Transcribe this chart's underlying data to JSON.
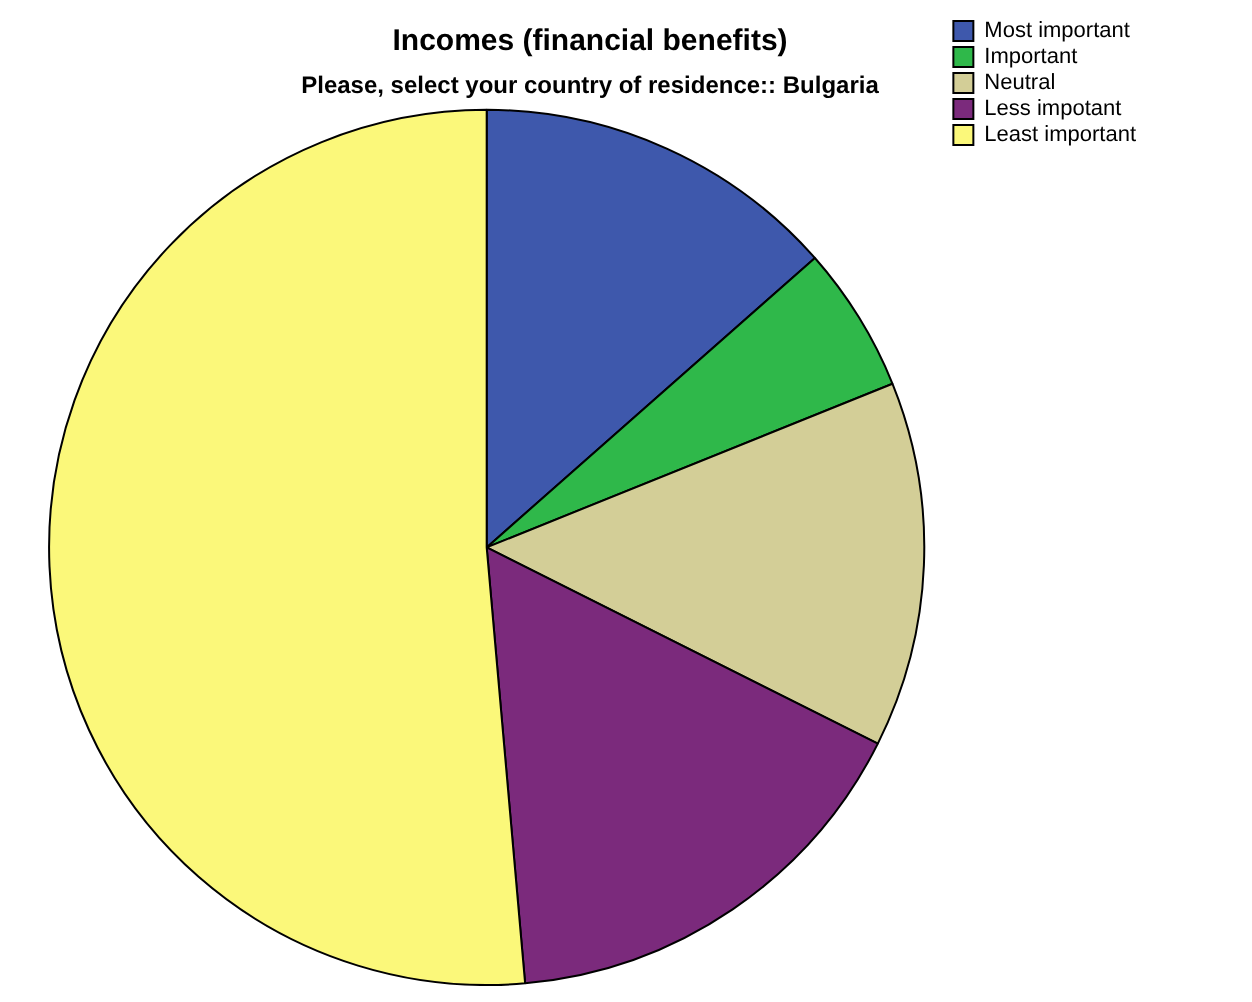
{
  "chart_data": {
    "type": "pie",
    "title": "Incomes (financial benefits)",
    "subtitle": "Please, select your country of residence:: Bulgaria",
    "categories": [
      "Most important",
      "Important",
      "Neutral",
      "Less impotant",
      "Least important"
    ],
    "values": [
      13.5,
      5.4,
      13.5,
      16.2,
      51.4
    ],
    "colors": [
      "#3e58ac",
      "#2fb84a",
      "#d3ce97",
      "#7b2a7c",
      "#fbf87a"
    ],
    "legend": "top right"
  }
}
